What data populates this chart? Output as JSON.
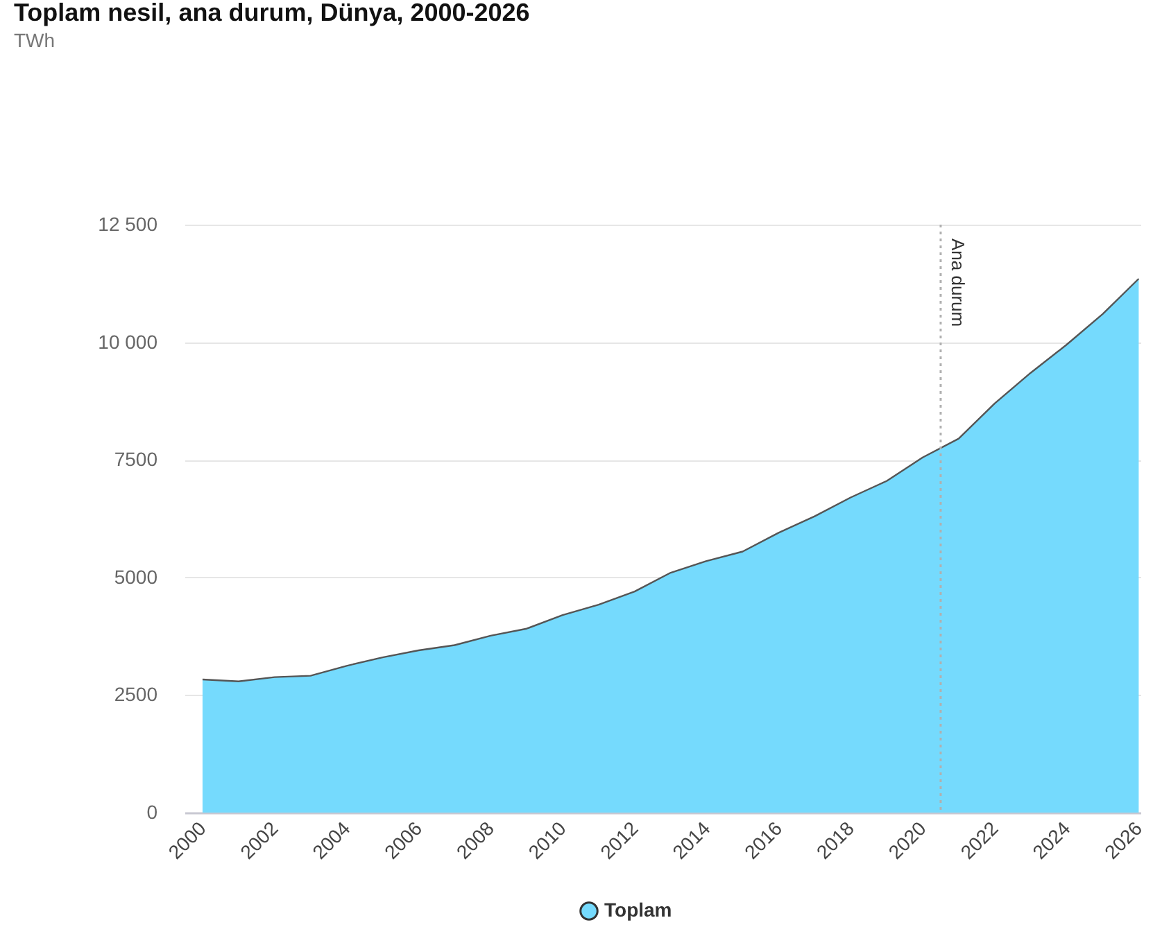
{
  "chart_data": {
    "type": "area",
    "title": "Toplam nesil, ana durum, Dünya, 2000-2026",
    "subtitle": "TWh",
    "x": [
      2000,
      2001,
      2002,
      2003,
      2004,
      2005,
      2006,
      2007,
      2008,
      2009,
      2010,
      2011,
      2012,
      2013,
      2014,
      2015,
      2016,
      2017,
      2018,
      2019,
      2020,
      2021,
      2022,
      2023,
      2024,
      2025,
      2026
    ],
    "series": [
      {
        "name": "Toplam",
        "color": "#75dafd",
        "values": [
          2830,
          2790,
          2880,
          2910,
          3120,
          3300,
          3450,
          3560,
          3760,
          3910,
          4200,
          4420,
          4700,
          5100,
          5350,
          5550,
          5950,
          6300,
          6700,
          7050,
          7550,
          7950,
          8700,
          9350,
          9950,
          10600,
          11350
        ]
      }
    ],
    "xlim": [
      1999.5,
      2026.05
    ],
    "xticks": [
      2000,
      2002,
      2004,
      2006,
      2008,
      2010,
      2012,
      2014,
      2016,
      2018,
      2020,
      2022,
      2024,
      2026
    ],
    "ylim": [
      0,
      12500
    ],
    "yticks": [
      0,
      2500,
      5000,
      7500,
      {
        "value": 10000,
        "label": "10 000"
      },
      {
        "value": 12500,
        "label": "12 500"
      }
    ],
    "ref_lines": [
      {
        "axis": "x",
        "value": 2020.5,
        "label": "Ana durum",
        "line_style": "dotted",
        "color": "#b0b0b0"
      }
    ],
    "grid": "y",
    "legend": "bottom"
  }
}
